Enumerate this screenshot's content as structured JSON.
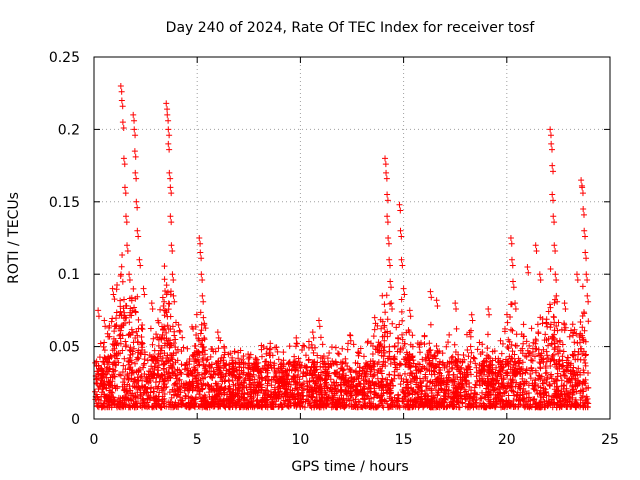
{
  "chart_data": {
    "type": "scatter",
    "title": "Day 240 of 2024, Rate Of TEC Index for receiver tosf",
    "xlabel": "GPS time / hours",
    "ylabel": "ROTI / TECUs",
    "xlim": [
      0,
      25
    ],
    "ylim": [
      0,
      0.25
    ],
    "x_ticks": [
      0,
      5,
      10,
      15,
      20,
      25
    ],
    "x_tick_labels": [
      "0",
      "5",
      "10",
      "15",
      "20",
      "25"
    ],
    "y_ticks": [
      0,
      0.05,
      0.1,
      0.15,
      0.2,
      0.25
    ],
    "y_tick_labels": [
      "0",
      "0.05",
      "0.1",
      "0.15",
      "0.2",
      "0.25"
    ],
    "grid": true,
    "marker": "+",
    "color": "#ff0000",
    "series": [
      {
        "name": "ROTI",
        "note": "dense band of points between ~0.01 and ~0.04 TECU/s across 0-24 h; representative spike points listed",
        "base_band": [
          0.008,
          0.04
        ],
        "spikes": [
          {
            "x": 0.2,
            "y": 0.075
          },
          {
            "x": 0.5,
            "y": 0.068
          },
          {
            "x": 0.9,
            "y": 0.09
          },
          {
            "x": 1.3,
            "y": 0.23
          },
          {
            "x": 1.35,
            "y": 0.22
          },
          {
            "x": 1.4,
            "y": 0.205
          },
          {
            "x": 1.45,
            "y": 0.18
          },
          {
            "x": 1.5,
            "y": 0.16
          },
          {
            "x": 1.55,
            "y": 0.14
          },
          {
            "x": 1.6,
            "y": 0.12
          },
          {
            "x": 1.7,
            "y": 0.1
          },
          {
            "x": 1.9,
            "y": 0.21
          },
          {
            "x": 1.95,
            "y": 0.2
          },
          {
            "x": 1.98,
            "y": 0.185
          },
          {
            "x": 2.0,
            "y": 0.17
          },
          {
            "x": 2.05,
            "y": 0.15
          },
          {
            "x": 2.1,
            "y": 0.13
          },
          {
            "x": 2.2,
            "y": 0.11
          },
          {
            "x": 2.4,
            "y": 0.09
          },
          {
            "x": 2.8,
            "y": 0.08
          },
          {
            "x": 3.5,
            "y": 0.218
          },
          {
            "x": 3.55,
            "y": 0.21
          },
          {
            "x": 3.6,
            "y": 0.2
          },
          {
            "x": 3.6,
            "y": 0.19
          },
          {
            "x": 3.65,
            "y": 0.17
          },
          {
            "x": 3.7,
            "y": 0.16
          },
          {
            "x": 3.7,
            "y": 0.14
          },
          {
            "x": 3.75,
            "y": 0.12
          },
          {
            "x": 3.8,
            "y": 0.1
          },
          {
            "x": 3.85,
            "y": 0.085
          },
          {
            "x": 4.1,
            "y": 0.065
          },
          {
            "x": 5.1,
            "y": 0.125
          },
          {
            "x": 5.15,
            "y": 0.115
          },
          {
            "x": 5.2,
            "y": 0.1
          },
          {
            "x": 5.25,
            "y": 0.085
          },
          {
            "x": 5.3,
            "y": 0.07
          },
          {
            "x": 6.0,
            "y": 0.06
          },
          {
            "x": 6.3,
            "y": 0.05
          },
          {
            "x": 8.5,
            "y": 0.048
          },
          {
            "x": 9.8,
            "y": 0.056
          },
          {
            "x": 10.6,
            "y": 0.06
          },
          {
            "x": 10.9,
            "y": 0.068
          },
          {
            "x": 12.4,
            "y": 0.058
          },
          {
            "x": 13.6,
            "y": 0.07
          },
          {
            "x": 14.1,
            "y": 0.18
          },
          {
            "x": 14.15,
            "y": 0.17
          },
          {
            "x": 14.2,
            "y": 0.155
          },
          {
            "x": 14.2,
            "y": 0.14
          },
          {
            "x": 14.25,
            "y": 0.125
          },
          {
            "x": 14.3,
            "y": 0.11
          },
          {
            "x": 14.35,
            "y": 0.095
          },
          {
            "x": 14.4,
            "y": 0.08
          },
          {
            "x": 14.8,
            "y": 0.148
          },
          {
            "x": 14.85,
            "y": 0.13
          },
          {
            "x": 14.9,
            "y": 0.11
          },
          {
            "x": 15.0,
            "y": 0.09
          },
          {
            "x": 15.3,
            "y": 0.075
          },
          {
            "x": 16.3,
            "y": 0.088
          },
          {
            "x": 16.6,
            "y": 0.082
          },
          {
            "x": 17.5,
            "y": 0.08
          },
          {
            "x": 18.3,
            "y": 0.072
          },
          {
            "x": 19.1,
            "y": 0.076
          },
          {
            "x": 20.2,
            "y": 0.125
          },
          {
            "x": 20.25,
            "y": 0.11
          },
          {
            "x": 20.3,
            "y": 0.095
          },
          {
            "x": 20.4,
            "y": 0.08
          },
          {
            "x": 21.0,
            "y": 0.105
          },
          {
            "x": 21.4,
            "y": 0.12
          },
          {
            "x": 21.6,
            "y": 0.1
          },
          {
            "x": 22.1,
            "y": 0.2
          },
          {
            "x": 22.15,
            "y": 0.19
          },
          {
            "x": 22.2,
            "y": 0.175
          },
          {
            "x": 22.2,
            "y": 0.155
          },
          {
            "x": 22.25,
            "y": 0.14
          },
          {
            "x": 22.3,
            "y": 0.12
          },
          {
            "x": 22.35,
            "y": 0.1
          },
          {
            "x": 22.4,
            "y": 0.085
          },
          {
            "x": 22.8,
            "y": 0.08
          },
          {
            "x": 23.4,
            "y": 0.1
          },
          {
            "x": 23.6,
            "y": 0.165
          },
          {
            "x": 23.65,
            "y": 0.16
          },
          {
            "x": 23.7,
            "y": 0.145
          },
          {
            "x": 23.75,
            "y": 0.13
          },
          {
            "x": 23.8,
            "y": 0.115
          },
          {
            "x": 23.85,
            "y": 0.1
          },
          {
            "x": 23.9,
            "y": 0.085
          }
        ]
      }
    ]
  }
}
